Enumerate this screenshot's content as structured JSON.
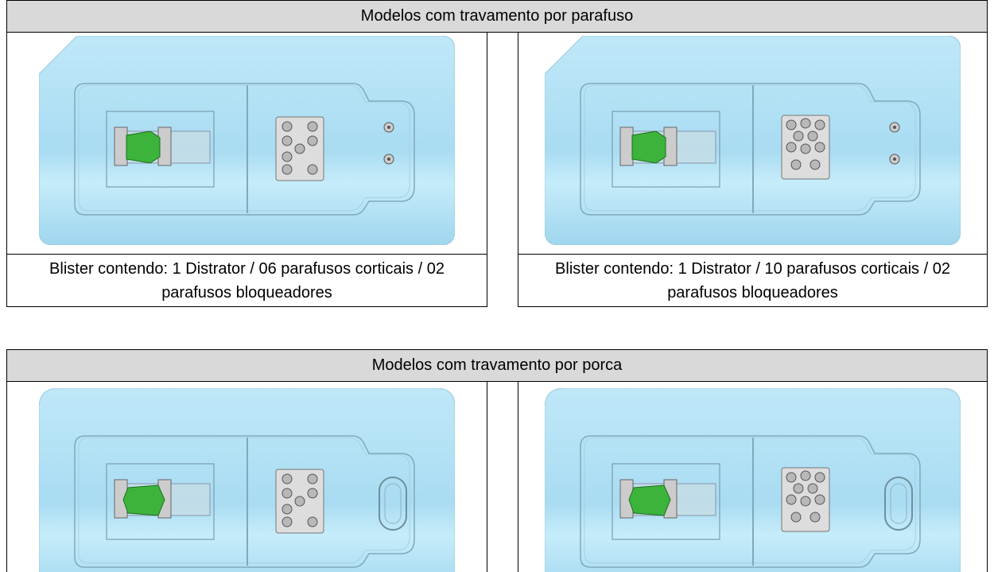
{
  "table1": {
    "title": "Modelos com travamento por parafuso",
    "cells": [
      {
        "caption": "Blister contendo: 1 Distrator / 06 parafusos corticais / 02 parafusos bloqueadores"
      },
      {
        "caption": "Blister contendo: 1 Distrator / 10 parafusos corticais / 02 parafusos bloqueadores"
      }
    ]
  },
  "table2": {
    "title": "Modelos com travamento por porca"
  }
}
